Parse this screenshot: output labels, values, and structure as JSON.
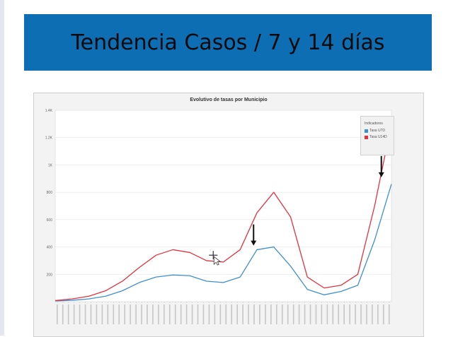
{
  "slide": {
    "title": "Tendencia Casos / 7 y 14 días"
  },
  "chart_data": {
    "type": "line",
    "title": "Evolutivo de tasas por Municipio",
    "ylim": [
      0,
      1400
    ],
    "yticks": [
      200,
      400,
      600,
      800,
      1000,
      1200,
      1400
    ],
    "ytick_labels": [
      "200",
      "400",
      "600",
      "800",
      "1K",
      "1.2K",
      "1.4K"
    ],
    "grid": true,
    "legend": {
      "position": "right",
      "title": "Indicadores",
      "items": [
        "Tasa U7D",
        "Tasa U14D"
      ]
    },
    "series": [
      {
        "name": "Tasa U7D",
        "color": "#3e8fcf",
        "x": [
          0,
          5,
          10,
          15,
          20,
          25,
          30,
          35,
          40,
          45,
          50,
          55,
          60,
          65,
          70,
          75,
          80,
          85,
          90,
          95,
          100
        ],
        "values": [
          5,
          10,
          20,
          40,
          80,
          140,
          180,
          195,
          190,
          150,
          140,
          180,
          380,
          400,
          260,
          90,
          50,
          75,
          120,
          450,
          860
        ]
      },
      {
        "name": "Tasa U14D",
        "color": "#e0333e",
        "x": [
          0,
          5,
          10,
          15,
          20,
          25,
          30,
          35,
          40,
          45,
          50,
          55,
          60,
          65,
          70,
          75,
          80,
          85,
          90,
          95,
          100
        ],
        "values": [
          8,
          20,
          40,
          80,
          150,
          250,
          340,
          380,
          360,
          300,
          290,
          380,
          650,
          800,
          620,
          180,
          100,
          120,
          200,
          700,
          1300
        ]
      }
    ],
    "annotations": [
      {
        "type": "arrow-down",
        "x": 59,
        "y_tip": 410
      },
      {
        "type": "arrow-down",
        "x": 97,
        "y_tip": 910
      }
    ]
  }
}
